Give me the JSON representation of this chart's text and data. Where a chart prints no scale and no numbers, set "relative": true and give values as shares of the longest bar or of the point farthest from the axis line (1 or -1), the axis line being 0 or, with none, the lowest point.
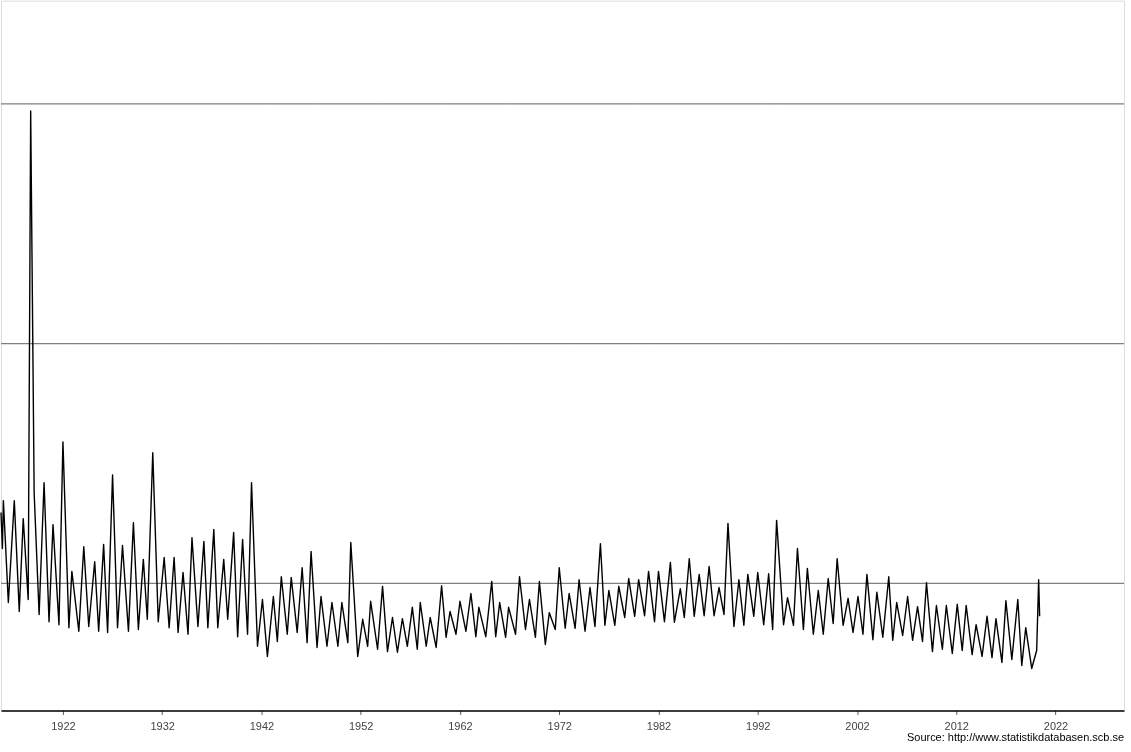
{
  "chart_data": {
    "type": "line",
    "relative": true,
    "tick_labels": "x",
    "x": [
      1915.76,
      1915.9,
      1916.0,
      1916.5,
      1917.1,
      1917.6,
      1918.0,
      1918.5,
      1918.75,
      1919.1,
      1919.6,
      1920.1,
      1920.6,
      1921.0,
      1921.6,
      1922.0,
      1922.6,
      1922.9,
      1923.6,
      1924.1,
      1924.6,
      1925.2,
      1925.6,
      1926.1,
      1926.5,
      1927.0,
      1927.5,
      1928.0,
      1928.6,
      1929.1,
      1929.6,
      1930.1,
      1930.5,
      1931.05,
      1931.6,
      1932.2,
      1932.7,
      1933.2,
      1933.6,
      1934.1,
      1934.6,
      1935.0,
      1935.6,
      1936.2,
      1936.6,
      1937.2,
      1937.6,
      1938.2,
      1938.6,
      1939.2,
      1939.6,
      1940.1,
      1940.6,
      1941.0,
      1941.6,
      1942.1,
      1942.6,
      1943.2,
      1943.6,
      1944.0,
      1944.6,
      1945.0,
      1945.6,
      1946.1,
      1946.6,
      1947.0,
      1947.6,
      1948.0,
      1948.6,
      1949.1,
      1949.7,
      1950.1,
      1950.7,
      1951.0,
      1951.7,
      1952.2,
      1952.7,
      1953.0,
      1953.7,
      1954.2,
      1954.7,
      1955.2,
      1955.7,
      1956.2,
      1956.7,
      1957.2,
      1957.7,
      1958.0,
      1958.6,
      1959.0,
      1959.6,
      1960.15,
      1960.6,
      1961.0,
      1961.6,
      1962.0,
      1962.6,
      1963.1,
      1963.6,
      1963.9,
      1964.6,
      1965.2,
      1965.6,
      1966.0,
      1966.6,
      1966.9,
      1967.6,
      1968.0,
      1968.6,
      1969.0,
      1969.6,
      1970.0,
      1970.6,
      1971.0,
      1971.6,
      1972.0,
      1972.6,
      1973.0,
      1973.6,
      1974.0,
      1974.6,
      1975.1,
      1975.6,
      1976.15,
      1976.6,
      1977.0,
      1977.6,
      1978.0,
      1978.6,
      1979.0,
      1979.6,
      1980.0,
      1980.6,
      1981.0,
      1981.6,
      1982.0,
      1982.6,
      1983.2,
      1983.6,
      1984.2,
      1984.6,
      1985.1,
      1985.6,
      1986.1,
      1986.6,
      1987.1,
      1987.6,
      1988.1,
      1988.6,
      1989.0,
      1989.6,
      1990.1,
      1990.6,
      1991.0,
      1991.6,
      1992.0,
      1992.6,
      1993.1,
      1993.5,
      1993.9,
      1994.6,
      1995.0,
      1995.6,
      1996.0,
      1996.6,
      1997.0,
      1997.6,
      1998.1,
      1998.6,
      1999.1,
      1999.6,
      2000.0,
      2000.6,
      2001.1,
      2001.6,
      2002.1,
      2002.6,
      2003.0,
      2003.6,
      2004.0,
      2004.6,
      2005.2,
      2005.6,
      2006.0,
      2006.6,
      2007.1,
      2007.6,
      2008.1,
      2008.6,
      2009.0,
      2009.6,
      2010.0,
      2010.6,
      2011.0,
      2011.6,
      2012.1,
      2012.6,
      2013.0,
      2013.6,
      2014.0,
      2014.6,
      2015.1,
      2015.6,
      2016.0,
      2016.6,
      2017.0,
      2017.6,
      2018.2,
      2018.6,
      2019.0,
      2019.6,
      2020.1,
      2020.3,
      2020.4
    ],
    "series": [
      {
        "color": "#000000",
        "values": [
          0.33,
          0.27,
          0.35,
          0.18,
          0.35,
          0.165,
          0.32,
          0.185,
          1.0,
          0.363,
          0.16,
          0.38,
          0.148,
          0.31,
          0.143,
          0.448,
          0.138,
          0.232,
          0.132,
          0.273,
          0.14,
          0.248,
          0.132,
          0.277,
          0.13,
          0.393,
          0.138,
          0.275,
          0.132,
          0.313,
          0.135,
          0.252,
          0.152,
          0.43,
          0.148,
          0.255,
          0.138,
          0.255,
          0.13,
          0.23,
          0.127,
          0.288,
          0.14,
          0.282,
          0.138,
          0.302,
          0.138,
          0.252,
          0.152,
          0.297,
          0.123,
          0.285,
          0.127,
          0.38,
          0.107,
          0.185,
          0.09,
          0.19,
          0.115,
          0.223,
          0.127,
          0.222,
          0.13,
          0.238,
          0.113,
          0.265,
          0.105,
          0.19,
          0.107,
          0.18,
          0.107,
          0.18,
          0.113,
          0.28,
          0.09,
          0.152,
          0.107,
          0.182,
          0.102,
          0.207,
          0.098,
          0.155,
          0.097,
          0.153,
          0.107,
          0.172,
          0.102,
          0.18,
          0.107,
          0.155,
          0.105,
          0.208,
          0.122,
          0.165,
          0.127,
          0.182,
          0.132,
          0.195,
          0.123,
          0.172,
          0.123,
          0.215,
          0.123,
          0.18,
          0.122,
          0.172,
          0.127,
          0.223,
          0.135,
          0.185,
          0.122,
          0.215,
          0.11,
          0.163,
          0.135,
          0.238,
          0.137,
          0.195,
          0.137,
          0.218,
          0.132,
          0.205,
          0.14,
          0.278,
          0.142,
          0.2,
          0.142,
          0.207,
          0.155,
          0.22,
          0.157,
          0.218,
          0.158,
          0.232,
          0.148,
          0.232,
          0.148,
          0.247,
          0.147,
          0.203,
          0.155,
          0.253,
          0.157,
          0.227,
          0.158,
          0.24,
          0.158,
          0.205,
          0.16,
          0.312,
          0.14,
          0.218,
          0.142,
          0.227,
          0.157,
          0.23,
          0.143,
          0.228,
          0.135,
          0.317,
          0.143,
          0.188,
          0.142,
          0.27,
          0.135,
          0.237,
          0.127,
          0.2,
          0.127,
          0.22,
          0.145,
          0.253,
          0.142,
          0.187,
          0.13,
          0.19,
          0.127,
          0.227,
          0.118,
          0.197,
          0.122,
          0.223,
          0.117,
          0.18,
          0.125,
          0.19,
          0.117,
          0.173,
          0.115,
          0.213,
          0.098,
          0.175,
          0.102,
          0.175,
          0.095,
          0.177,
          0.1,
          0.175,
          0.093,
          0.143,
          0.09,
          0.157,
          0.088,
          0.153,
          0.08,
          0.183,
          0.085,
          0.185,
          0.075,
          0.138,
          0.07,
          0.1,
          0.218,
          0.157
        ]
      }
    ],
    "xlim": [
      1915.76,
      2028.9
    ],
    "xticks": [
      1922,
      1932,
      1942,
      1952,
      1962,
      1972,
      1982,
      1992,
      2002,
      2012,
      2022
    ],
    "ref_lines": [
      {
        "axis": "y",
        "value": 0.212,
        "color": "#808080"
      },
      {
        "axis": "y",
        "value": 0.612,
        "color": "#808080"
      },
      {
        "axis": "y",
        "value": 1.012,
        "color": "#808080"
      }
    ],
    "annotations": [
      "Source: http://www.statistikdatabasen.scb.se"
    ]
  }
}
